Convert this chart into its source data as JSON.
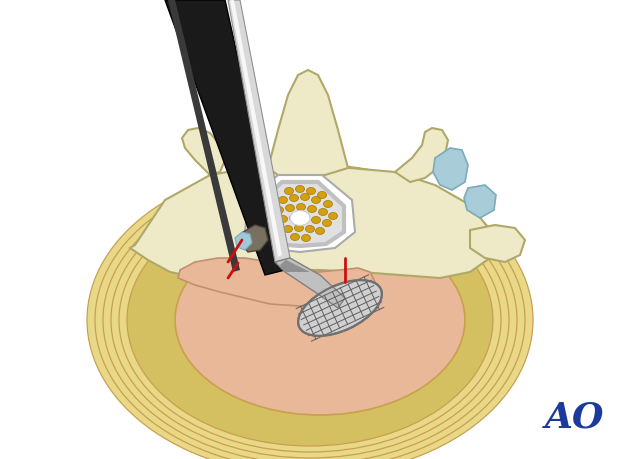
{
  "bg_color": "#ffffff",
  "figure_size": [
    6.2,
    4.59
  ],
  "dpi": 100,
  "ao_text": "AO",
  "ao_color": "#1a3a9c",
  "ao_fontsize": 26,
  "vertebra_color": "#eeeac8",
  "vertebra_edge": "#b0a868",
  "disc_outer_color": "#e8d888",
  "disc_inner_color": "#e8b898",
  "disc_edge_color": "#c8a050",
  "cartilage_blue": "#a8ccd8",
  "red_line_color": "#cc1010",
  "tool_handle_dark": "#181818",
  "tool_shaft_silver": "#d0d0d0",
  "nerve_dot_color": "#d4a010",
  "bone_fragment_color": "#888070",
  "curette_color": "#c0c0c0"
}
